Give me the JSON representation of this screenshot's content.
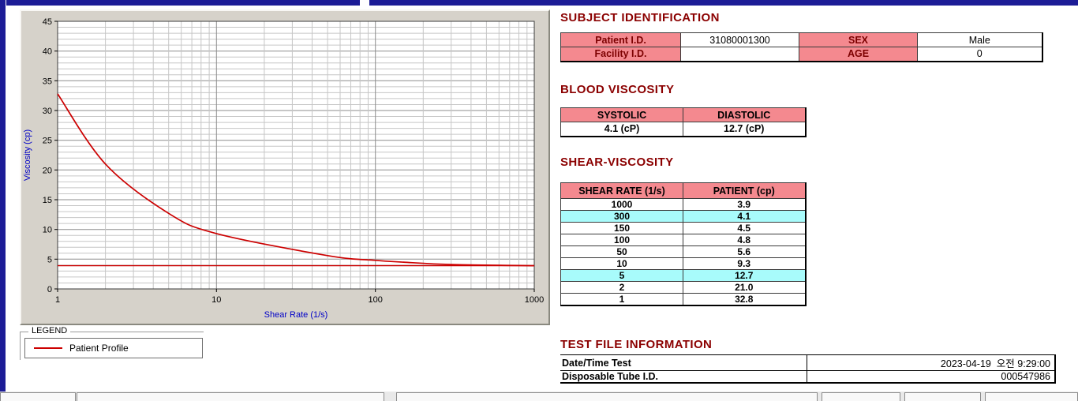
{
  "colors": {
    "curve": "#cc0000",
    "table_header_bg": "#f4898f",
    "highlight_bg": "#a8fbfb",
    "section_title": "#8b0000",
    "axis_label": "#0000c8"
  },
  "legend": {
    "group_label": "LEGEND",
    "series_label": "Patient Profile"
  },
  "chart_data": {
    "type": "line",
    "title": "",
    "xlabel": "Shear Rate (1/s)",
    "ylabel": "Viscosity (cp)",
    "x_scale": "log",
    "xlim": [
      1,
      1000
    ],
    "x_ticks": [
      1,
      10,
      100,
      1000
    ],
    "ylim": [
      0,
      45
    ],
    "y_tick_step": 5,
    "y_minor_step": 1,
    "grid": true,
    "reference_line_y": 3.9,
    "series": [
      {
        "name": "Patient Profile",
        "color": "#cc0000",
        "x": [
          1,
          2,
          5,
          10,
          50,
          100,
          150,
          300,
          1000
        ],
        "y": [
          32.8,
          21.0,
          12.7,
          9.3,
          5.6,
          4.8,
          4.5,
          4.1,
          3.9
        ]
      }
    ]
  },
  "subject_identification": {
    "title": "SUBJECT IDENTIFICATION",
    "rows": [
      {
        "label1": "Patient I.D.",
        "value1": "31080001300",
        "label2": "SEX",
        "value2": "Male"
      },
      {
        "label1": "Facility I.D.",
        "value1": "",
        "label2": "AGE",
        "value2": "0"
      }
    ]
  },
  "blood_viscosity": {
    "title": "BLOOD VISCOSITY",
    "headers": [
      "SYSTOLIC",
      "DIASTOLIC"
    ],
    "values": [
      "4.1 (cP)",
      "12.7 (cP)"
    ]
  },
  "shear_viscosity": {
    "title": "SHEAR-VISCOSITY",
    "headers": [
      "SHEAR RATE (1/s)",
      "PATIENT (cp)"
    ],
    "rows": [
      {
        "rate": "1000",
        "value": "3.9",
        "highlight": false
      },
      {
        "rate": "300",
        "value": "4.1",
        "highlight": true
      },
      {
        "rate": "150",
        "value": "4.5",
        "highlight": false
      },
      {
        "rate": "100",
        "value": "4.8",
        "highlight": false
      },
      {
        "rate": "50",
        "value": "5.6",
        "highlight": false
      },
      {
        "rate": "10",
        "value": "9.3",
        "highlight": false
      },
      {
        "rate": "5",
        "value": "12.7",
        "highlight": true
      },
      {
        "rate": "2",
        "value": "21.0",
        "highlight": false
      },
      {
        "rate": "1",
        "value": "32.8",
        "highlight": false
      }
    ]
  },
  "test_file_information": {
    "title": "TEST FILE INFORMATION",
    "rows": [
      {
        "label": "Date/Time Test",
        "value": "2023-04-19  오전 9:29:00"
      },
      {
        "label": "Disposable Tube I.D.",
        "value": "000547986"
      }
    ]
  }
}
